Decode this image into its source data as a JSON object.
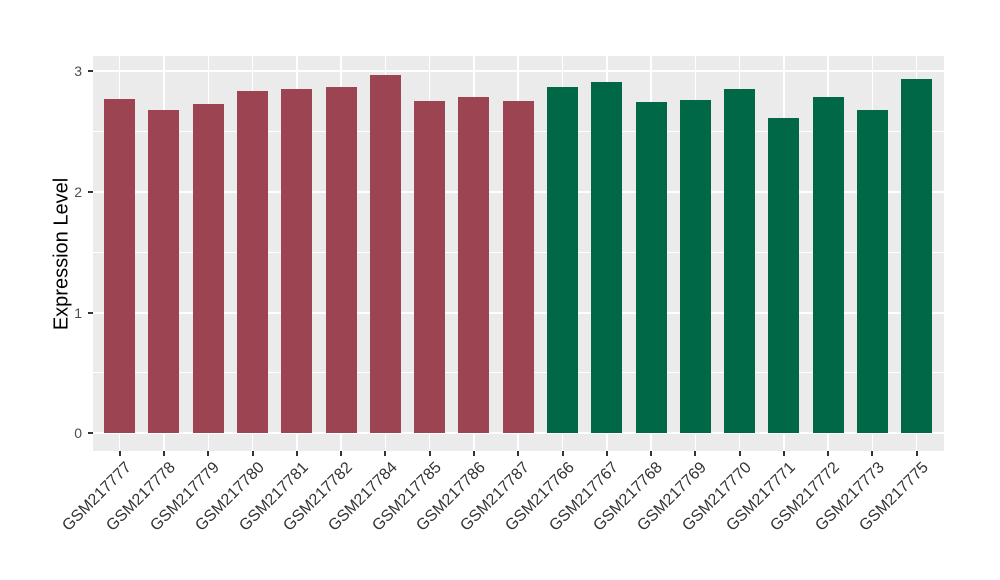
{
  "chart_data": {
    "type": "bar",
    "title": "",
    "xlabel": "",
    "ylabel": "Expression Level",
    "ylim": [
      0,
      3.1
    ],
    "y_tick_values": [
      0,
      1,
      2,
      3
    ],
    "y_tick_labels": [
      "0",
      "1",
      "2",
      "3"
    ],
    "y_minor_tick_values": [
      0.5,
      1.5,
      2.5
    ],
    "grid": "white major and minor gridlines on grey panel",
    "legend_position": "none",
    "categories": [
      "GSM217777",
      "GSM217778",
      "GSM217779",
      "GSM217780",
      "GSM217781",
      "GSM217782",
      "GSM217784",
      "GSM217785",
      "GSM217786",
      "GSM217787",
      "GSM217766",
      "GSM217767",
      "GSM217768",
      "GSM217769",
      "GSM217770",
      "GSM217771",
      "GSM217772",
      "GSM217773",
      "GSM217775"
    ],
    "values": [
      2.77,
      2.68,
      2.73,
      2.83,
      2.85,
      2.87,
      2.97,
      2.75,
      2.78,
      2.75,
      2.87,
      2.91,
      2.74,
      2.76,
      2.85,
      2.61,
      2.78,
      2.68,
      2.93
    ],
    "groups": [
      "group1",
      "group1",
      "group1",
      "group1",
      "group1",
      "group1",
      "group1",
      "group1",
      "group1",
      "group1",
      "group2",
      "group2",
      "group2",
      "group2",
      "group2",
      "group2",
      "group2",
      "group2",
      "group2"
    ],
    "group_colors": {
      "group1": "#9C4452",
      "group2": "#006847"
    },
    "colors": {
      "figure_background": "#FFFFFF",
      "panel_background": "#EBEBEB",
      "gridline": "#FFFFFF",
      "y_axis_text": "#4D4D4D",
      "x_axis_text": "#333333",
      "axis_title": "#000000",
      "tick_mark": "#333333"
    }
  }
}
